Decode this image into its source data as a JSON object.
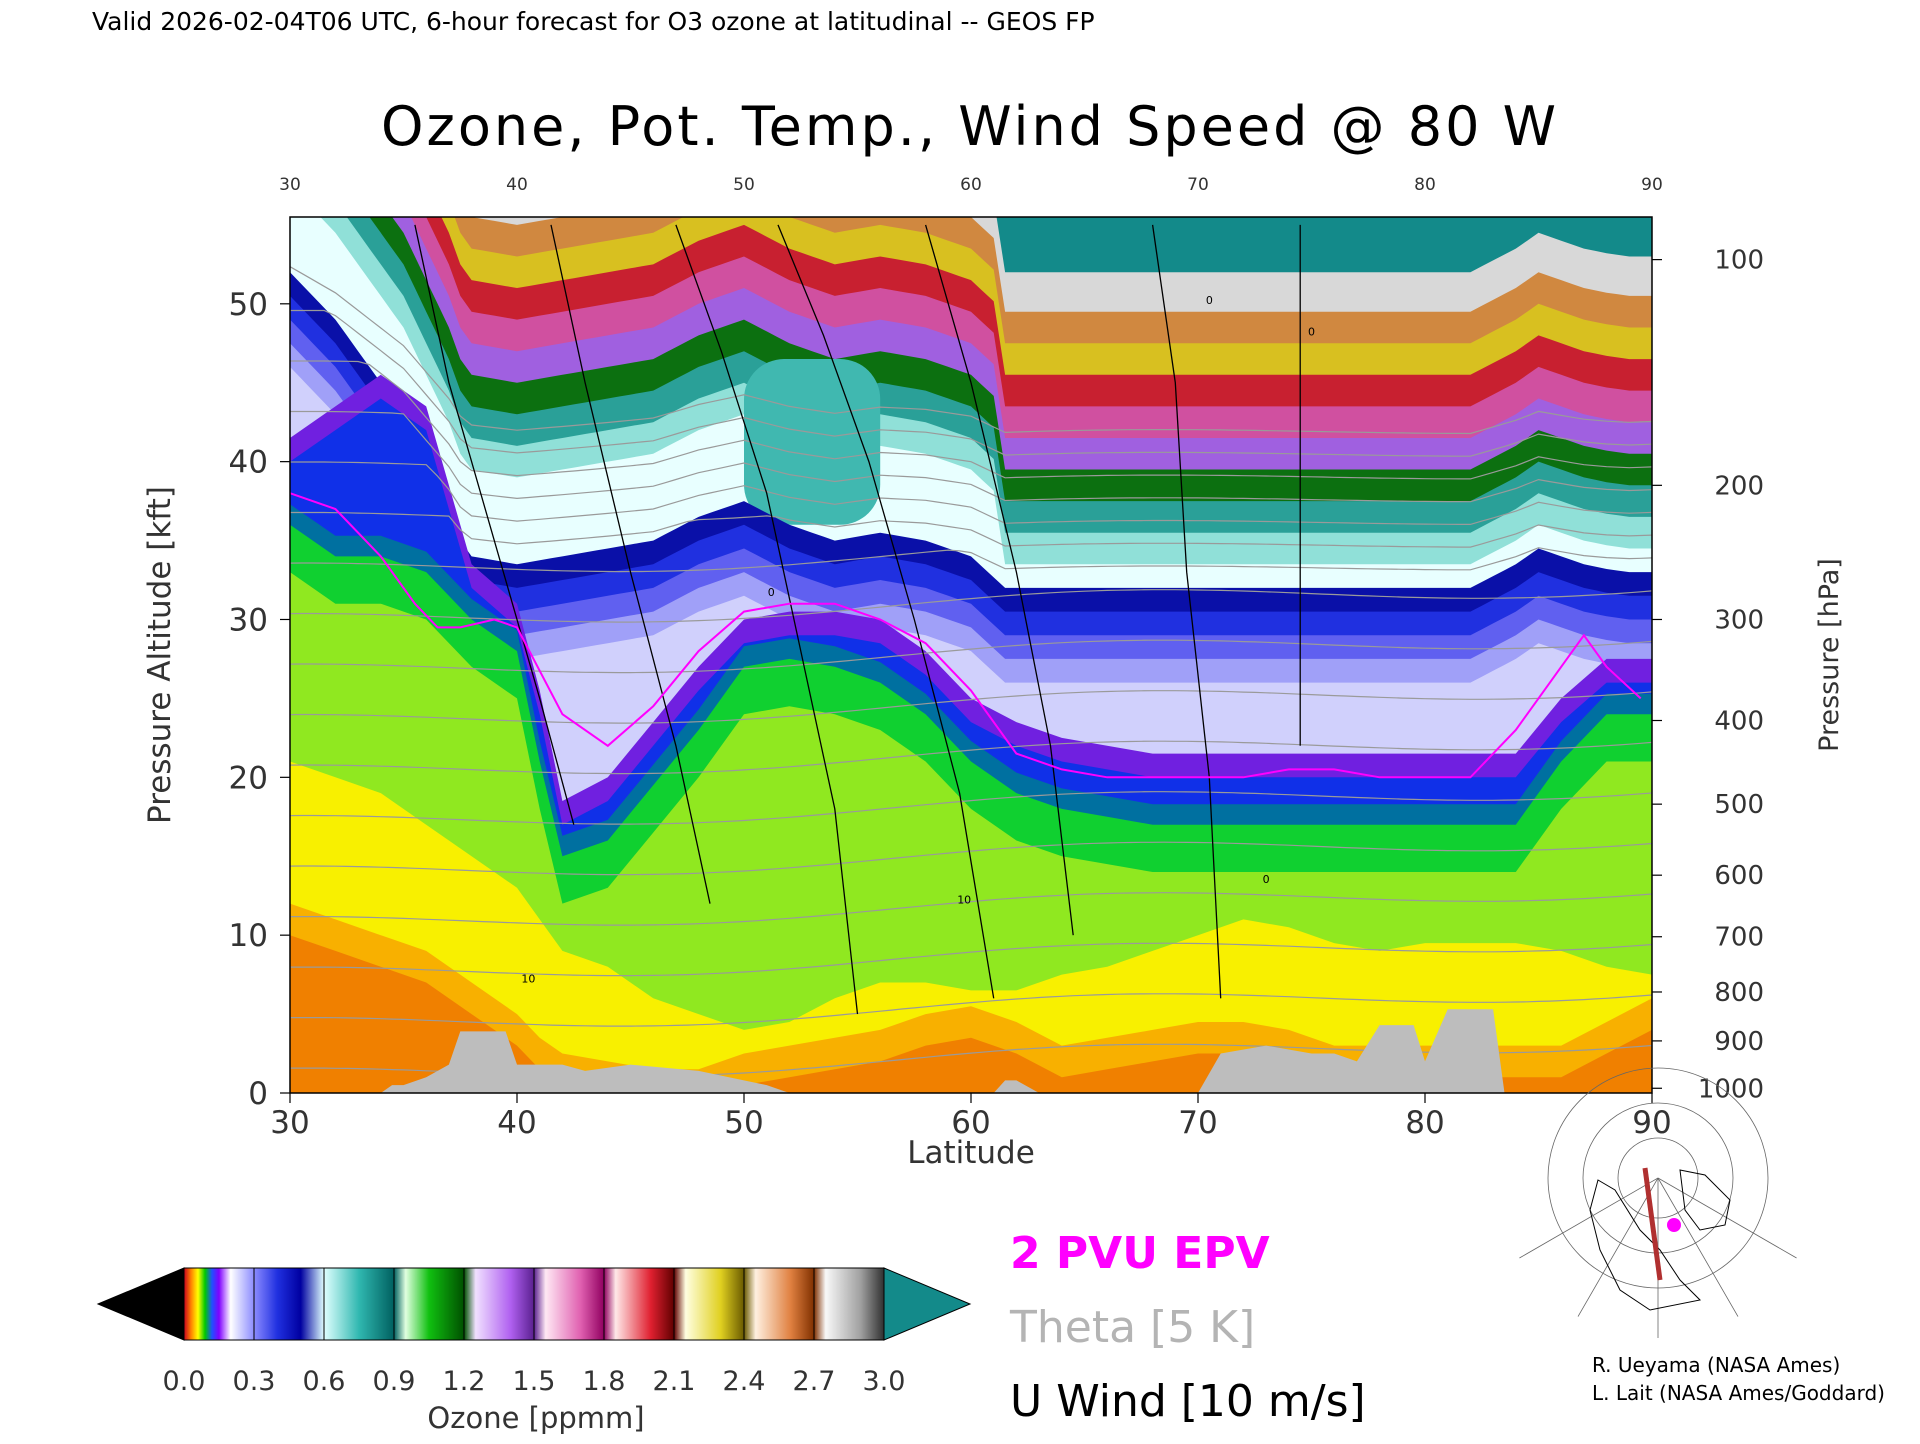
{
  "header": {
    "valid_line": "Valid 2026-02-04T06 UTC, 6-hour forecast for O3 ozone at latitudinal -- GEOS FP"
  },
  "chart_data": {
    "type": "heatmap",
    "title": "Ozone, Pot. Temp., Wind Speed @ 80 W",
    "xlabel": "Latitude",
    "ylabel_left": "Pressure Altitude [kft]",
    "ylabel_right": "Pressure [hPa]",
    "xlim": [
      30,
      90
    ],
    "ylim": [
      0,
      55.5
    ],
    "x_ticks": [
      "30",
      "40",
      "50",
      "60",
      "70",
      "80",
      "90"
    ],
    "top_ticks": [
      "30",
      "40",
      "50",
      "60",
      "70",
      "80",
      "90"
    ],
    "y_ticks": [
      "0",
      "10",
      "20",
      "30",
      "40",
      "50"
    ],
    "pressure_ticks": [
      {
        "label": "100",
        "kft": 52.8
      },
      {
        "label": "200",
        "kft": 38.5
      },
      {
        "label": "300",
        "kft": 30.0
      },
      {
        "label": "400",
        "kft": 23.6
      },
      {
        "label": "500",
        "kft": 18.3
      },
      {
        "label": "600",
        "kft": 13.8
      },
      {
        "label": "700",
        "kft": 9.9
      },
      {
        "label": "800",
        "kft": 6.4
      },
      {
        "label": "900",
        "kft": 3.3
      },
      {
        "label": "1000",
        "kft": 0.3
      }
    ],
    "colorbar": {
      "label": "Ozone [ppmm]",
      "ticks": [
        "0.0",
        "0.3",
        "0.6",
        "0.9",
        "1.2",
        "1.5",
        "1.8",
        "2.1",
        "2.4",
        "2.7",
        "3.0"
      ],
      "min": 0.0,
      "max": 3.0,
      "under_color": "#000000",
      "over_color": "#138a8a",
      "stops": [
        {
          "value": 0.0,
          "color": "#c8001e"
        },
        {
          "value": 0.03,
          "color": "#ff8000"
        },
        {
          "value": 0.06,
          "color": "#ffff00"
        },
        {
          "value": 0.09,
          "color": "#00c800"
        },
        {
          "value": 0.12,
          "color": "#2050ff"
        },
        {
          "value": 0.15,
          "color": "#8000ff"
        },
        {
          "value": 0.2,
          "color": "#ffffff"
        },
        {
          "value": 0.3,
          "color": "#8c8cff"
        },
        {
          "value": 0.4,
          "color": "#2030e0"
        },
        {
          "value": 0.5,
          "color": "#0000a0"
        },
        {
          "value": 0.6,
          "color": "#e0ffff"
        },
        {
          "value": 0.75,
          "color": "#30b8b0"
        },
        {
          "value": 0.9,
          "color": "#006060"
        },
        {
          "value": 0.95,
          "color": "#e0ffe0"
        },
        {
          "value": 1.05,
          "color": "#10c010"
        },
        {
          "value": 1.2,
          "color": "#005000"
        },
        {
          "value": 1.25,
          "color": "#f0e0ff"
        },
        {
          "value": 1.4,
          "color": "#b060f0"
        },
        {
          "value": 1.5,
          "color": "#5a2090"
        },
        {
          "value": 1.55,
          "color": "#ffe8f4"
        },
        {
          "value": 1.7,
          "color": "#e060b0"
        },
        {
          "value": 1.8,
          "color": "#900060"
        },
        {
          "value": 1.85,
          "color": "#ffe8e8"
        },
        {
          "value": 2.0,
          "color": "#e02030"
        },
        {
          "value": 2.1,
          "color": "#600000"
        },
        {
          "value": 2.15,
          "color": "#ffffe0"
        },
        {
          "value": 2.3,
          "color": "#e0d020"
        },
        {
          "value": 2.4,
          "color": "#6a5a00"
        },
        {
          "value": 2.45,
          "color": "#fff0e0"
        },
        {
          "value": 2.6,
          "color": "#e08040"
        },
        {
          "value": 2.7,
          "color": "#803000"
        },
        {
          "value": 2.75,
          "color": "#f8f8f8"
        },
        {
          "value": 2.9,
          "color": "#a0a0a0"
        },
        {
          "value": 3.0,
          "color": "#303030"
        }
      ]
    },
    "legend": {
      "epv": "2 PVU EPV",
      "theta": "Theta [5 K]",
      "wind": "U Wind [10 m/s]",
      "epv_color": "#ff00ff",
      "theta_color": "#b4b4b4",
      "wind_color": "#000000"
    },
    "tropopause_kft": {
      "lat": [
        30,
        32,
        34,
        35,
        36,
        37,
        37.5,
        38,
        40,
        42,
        44,
        46,
        48,
        50,
        52,
        54,
        56,
        58,
        60,
        61.5,
        64,
        66,
        68,
        70,
        72,
        74,
        76,
        78,
        80,
        82,
        84,
        85,
        86,
        87,
        88,
        89,
        90
      ],
      "kft": [
        52,
        49,
        45,
        43,
        40,
        37,
        35,
        34,
        33.5,
        34,
        34.5,
        35,
        36.5,
        37.5,
        36,
        35,
        35.5,
        35,
        34,
        32,
        32,
        32,
        32,
        32,
        32,
        32,
        32,
        32,
        32,
        32,
        33.5,
        34.5,
        34,
        33.5,
        33.2,
        33,
        33
      ]
    },
    "strat_features_kft": {
      "cyan_core": [
        {
          "lat_from": 50,
          "lat_to": 56,
          "kft_from": 36,
          "kft_to": 46.5
        }
      ],
      "step_lat": 61.5,
      "step_kft": 50.5
    },
    "troposphere_bands_kft": {
      "lat": [
        30,
        32,
        34,
        36,
        38,
        40,
        41,
        42,
        44,
        46,
        48,
        50,
        52,
        54,
        56,
        58,
        60,
        62,
        64,
        66,
        68,
        70,
        72,
        74,
        76,
        78,
        80,
        82,
        84,
        86,
        88,
        90
      ],
      "blue_base": [
        40,
        42,
        44,
        42,
        32,
        29.5,
        24,
        17,
        18.5,
        22,
        25.5,
        28.5,
        29,
        29,
        28.5,
        26.5,
        23.5,
        22,
        21,
        20.5,
        20,
        20,
        20,
        20,
        20,
        20,
        20,
        20,
        20,
        23.5,
        26,
        26
      ],
      "green_top": [
        36,
        34,
        34,
        33,
        30,
        28,
        21,
        15,
        16,
        19.5,
        23,
        27,
        27.5,
        27,
        26,
        24,
        21,
        19,
        18,
        17.5,
        17,
        17,
        17,
        17,
        17,
        17,
        17,
        17,
        17,
        21,
        24,
        24
      ],
      "yellow_top": [
        21,
        20,
        19,
        17,
        15,
        13,
        11,
        9,
        8,
        6,
        5,
        4,
        4.5,
        6,
        7,
        7,
        6.5,
        6.5,
        7.5,
        8,
        9,
        10,
        11,
        10.5,
        9.5,
        9,
        9.5,
        9.5,
        9.5,
        9,
        8,
        7.5
      ],
      "orange_top": [
        12,
        11,
        10,
        9,
        7,
        5,
        3.5,
        2.5,
        2,
        1.5,
        1.5,
        2.5,
        3,
        3.5,
        4,
        5,
        5.5,
        4.5,
        3,
        3.5,
        4,
        4.5,
        4.5,
        4,
        3,
        3,
        3,
        3,
        3,
        3,
        4.5,
        6
      ]
    },
    "topography_kft": {
      "lat": [
        30,
        34,
        34.5,
        35,
        36,
        37,
        37.5,
        39.5,
        40,
        42,
        43,
        45,
        48,
        51,
        52,
        57,
        61,
        61.5,
        62,
        63,
        67,
        70,
        71,
        73,
        75,
        76,
        77,
        78,
        79.5,
        80,
        81,
        83,
        83.5,
        90
      ],
      "kft": [
        0,
        0,
        0.5,
        0.5,
        1.0,
        1.8,
        3.9,
        3.9,
        1.8,
        1.8,
        1.4,
        1.8,
        1.4,
        0.5,
        0,
        0,
        0,
        0.8,
        0.8,
        0,
        0,
        0,
        2.5,
        3.0,
        2.5,
        2.5,
        2.0,
        4.3,
        4.3,
        2.0,
        5.3,
        5.3,
        0,
        0
      ]
    },
    "theta_contours_K": [
      "250",
      "260",
      "270",
      "280",
      "290",
      "300",
      "310",
      "320",
      "330",
      "340",
      "350",
      "360",
      "370",
      "380",
      "390",
      "400",
      "410"
    ],
    "wind_contours": [
      {
        "lat": [
          35.5,
          37,
          39,
          41,
          42.5
        ],
        "kft": [
          55,
          45,
          35,
          25,
          17
        ]
      },
      {
        "lat": [
          41.5,
          43,
          45,
          47,
          48.5
        ],
        "kft": [
          55,
          45,
          33,
          22,
          12
        ]
      },
      {
        "lat": [
          47,
          49,
          51,
          52.5,
          54,
          55
        ],
        "kft": [
          55,
          47,
          38,
          28,
          18,
          5
        ]
      },
      {
        "lat": [
          51.5,
          53.5,
          55.5,
          57.5,
          59.5,
          61
        ],
        "kft": [
          55,
          48,
          40,
          30,
          19,
          6
        ]
      },
      {
        "lat": [
          58,
          60,
          62,
          63.5,
          64.5
        ],
        "kft": [
          55,
          45,
          33,
          22,
          10
        ]
      },
      {
        "lat": [
          68,
          69,
          69.5,
          70.5,
          71
        ],
        "kft": [
          55,
          45,
          33,
          20,
          6
        ]
      },
      {
        "lat": [
          74.5,
          74.5,
          74.5,
          74.5
        ],
        "kft": [
          55,
          45,
          35,
          22
        ]
      }
    ],
    "wind_labels": [
      {
        "text": "10",
        "lat": 40.5,
        "kft": 7.0
      },
      {
        "text": "10",
        "lat": 59.7,
        "kft": 12.0
      },
      {
        "text": "0",
        "lat": 73.0,
        "kft": 13.3
      },
      {
        "text": "0",
        "lat": 70.5,
        "kft": 50.0
      },
      {
        "text": "0",
        "lat": 75.0,
        "kft": 48.0
      },
      {
        "text": "0",
        "lat": 51.2,
        "kft": 31.5
      }
    ],
    "epv_2pvu_kft": {
      "lat": [
        30,
        32,
        34,
        35.5,
        36.5,
        37.5,
        39,
        40,
        42,
        44,
        46,
        48,
        50,
        52,
        54,
        56,
        58,
        60,
        62,
        64,
        66,
        68,
        70,
        72,
        74,
        76,
        78,
        80,
        82,
        84,
        85,
        86,
        87,
        88,
        89.5
      ],
      "kft": [
        38,
        37,
        34,
        31,
        29.5,
        29.5,
        30,
        29.5,
        24,
        22,
        24.5,
        28,
        30.5,
        31,
        31,
        30,
        28.5,
        25.5,
        21.5,
        20.5,
        20,
        20,
        20,
        20,
        20.5,
        20.5,
        20,
        20,
        20,
        23,
        25,
        27,
        29,
        27,
        25
      ]
    },
    "inset_map": {
      "credit_line1": "R. Ueyama (NASA Ames)",
      "credit_line2": "L. Lait (NASA Ames/Goddard)"
    }
  }
}
